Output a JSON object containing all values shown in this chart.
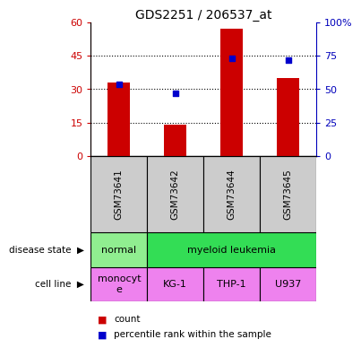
{
  "title": "GDS2251 / 206537_at",
  "samples": [
    "GSM73641",
    "GSM73642",
    "GSM73644",
    "GSM73645"
  ],
  "counts": [
    33,
    14,
    57,
    35
  ],
  "percentiles": [
    54,
    47,
    73,
    72
  ],
  "left_yticks": [
    0,
    15,
    30,
    45,
    60
  ],
  "right_yticks": [
    0,
    25,
    50,
    75,
    100
  ],
  "left_ylim": [
    0,
    60
  ],
  "right_ylim": [
    0,
    100
  ],
  "bar_color": "#cc0000",
  "dot_color": "#0000cc",
  "disease_color_normal": "#90ee90",
  "disease_color_leukemia": "#33dd55",
  "cell_color": "#ee82ee",
  "sample_box_color": "#cccccc",
  "legend_count_color": "#cc0000",
  "legend_pct_color": "#0000cc",
  "left_label_color": "#cc0000",
  "right_label_color": "#0000bb"
}
